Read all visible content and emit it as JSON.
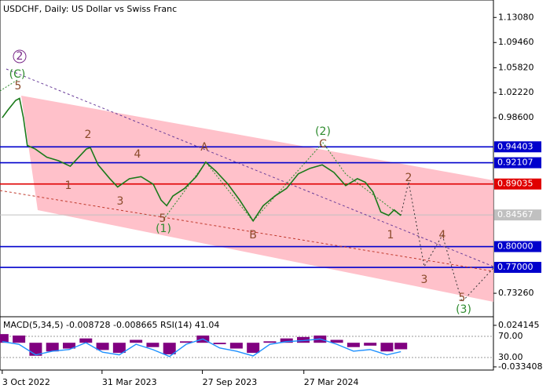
{
  "chart_data": [
    {
      "type": "line",
      "title": "USDCHF, Daily:  US Dollar vs Swiss Franc",
      "color": "#1a7a1a",
      "x": [
        0,
        10,
        24,
        31,
        38,
        45,
        59,
        80,
        101,
        122,
        137,
        151,
        158,
        172,
        193,
        207,
        228,
        249,
        271,
        285,
        295,
        306,
        327,
        348,
        365,
        383,
        405,
        426,
        450,
        468,
        489,
        510,
        531,
        552,
        574,
        595,
        616,
        637,
        651,
        665,
        679,
        693,
        703,
        715
      ],
      "values": [
        0.986,
        0.997,
        1.011,
        1.014,
        0.986,
        0.946,
        0.941,
        0.929,
        0.924,
        0.916,
        0.929,
        0.941,
        0.943,
        0.918,
        0.898,
        0.886,
        0.898,
        0.901,
        0.89,
        0.867,
        0.859,
        0.873,
        0.884,
        0.901,
        0.922,
        0.909,
        0.89,
        0.867,
        0.837,
        0.859,
        0.873,
        0.884,
        0.905,
        0.913,
        0.918,
        0.907,
        0.888,
        0.898,
        0.893,
        0.879,
        0.85,
        0.845,
        0.853,
        0.845
      ],
      "xlim": [
        -4,
        881
      ],
      "xticks": [
        {
          "value": 0,
          "label": "3 Oct 2022"
        },
        {
          "value": 179,
          "label": "31 Mar 2023"
        },
        {
          "value": 359,
          "label": "27 Sep 2023"
        },
        {
          "value": 541,
          "label": "27 Mar 2024"
        }
      ],
      "ylim": [
        0.701,
        1.156
      ],
      "yticks": [
        {
          "value": 1.1308,
          "label": "1.13080"
        },
        {
          "value": 1.0946,
          "label": "1.09460"
        },
        {
          "value": 1.0582,
          "label": "1.05820"
        },
        {
          "value": 1.0222,
          "label": "1.02220"
        },
        {
          "value": 0.986,
          "label": "0.98600"
        },
        {
          "value": 0.7326,
          "label": "0.73260"
        }
      ],
      "levels": [
        {
          "value": 0.94403,
          "label": "0.94403",
          "color": "#0000cc"
        },
        {
          "value": 0.92107,
          "label": "0.92107",
          "color": "#0000cc"
        },
        {
          "value": 0.89035,
          "label": "0.89035",
          "color": "#e00000"
        },
        {
          "value": 0.84567,
          "label": "0.84567",
          "color": "#c0c0c0"
        },
        {
          "value": 0.8,
          "label": "0.80000",
          "color": "#0000cc"
        },
        {
          "value": 0.77,
          "label": "0.77000",
          "color": "#0000cc"
        }
      ],
      "annotations": [
        {
          "text": "2",
          "color": "#7a2a8a"
        },
        {
          "text": "(C)",
          "color": "#2e8b2e"
        },
        {
          "text": "5",
          "color": "#8b4a2a"
        },
        {
          "text": "1",
          "color": "#8b4a2a"
        },
        {
          "text": "2",
          "color": "#8b4a2a"
        },
        {
          "text": "3",
          "color": "#8b4a2a"
        },
        {
          "text": "4",
          "color": "#8b4a2a"
        },
        {
          "text": "5",
          "color": "#8b4a2a"
        },
        {
          "text": "(1)",
          "color": "#2e8b2e"
        },
        {
          "text": "A",
          "color": "#8b4a2a"
        },
        {
          "text": "B",
          "color": "#8b4a2a"
        },
        {
          "text": "(2)",
          "color": "#2e8b2e"
        },
        {
          "text": "C",
          "color": "#8b4a2a"
        },
        {
          "text": "2",
          "color": "#8b4a2a"
        },
        {
          "text": "1",
          "color": "#8b4a2a"
        },
        {
          "text": "3",
          "color": "#8b4a2a"
        },
        {
          "text": "4",
          "color": "#8b4a2a"
        },
        {
          "text": "5",
          "color": "#8b4a2a"
        },
        {
          "text": "(3)",
          "color": "#2e8b2e"
        }
      ]
    },
    {
      "type": "macd",
      "title": "MACD(5,34,5) -0.008728 -0.008665 RSI(14) 41.04",
      "x": [
        0,
        30,
        60,
        90,
        120,
        150,
        180,
        210,
        240,
        270,
        300,
        330,
        360,
        390,
        420,
        450,
        480,
        510,
        540,
        570,
        600,
        630,
        660,
        690,
        715
      ],
      "series": [
        {
          "color": "#800080",
          "values": [
            0.012,
            0.01,
            -0.018,
            -0.012,
            -0.008,
            0.006,
            -0.01,
            -0.014,
            0.004,
            -0.006,
            -0.016,
            0.002,
            0.01,
            -0.002,
            -0.008,
            -0.014,
            0.002,
            0.006,
            0.008,
            0.01,
            0.004,
            -0.006,
            -0.004,
            -0.012,
            -0.009
          ]
        },
        {
          "color": "#1e90ff",
          "axis": "y2",
          "values": [
            60,
            55,
            35,
            42,
            45,
            58,
            40,
            35,
            55,
            45,
            32,
            55,
            65,
            48,
            42,
            33,
            55,
            60,
            62,
            65,
            55,
            42,
            45,
            35,
            41.04
          ]
        }
      ],
      "ylim": [
        -0.0378,
        0.0317
      ],
      "yticks": [
        0.024145,
        -0.033408
      ],
      "y2lim": [
        6.3,
        101.1
      ],
      "y2ticks": [
        {
          "value": 70,
          "label": "70.00"
        },
        {
          "value": 30,
          "label": "30.00"
        }
      ]
    }
  ]
}
